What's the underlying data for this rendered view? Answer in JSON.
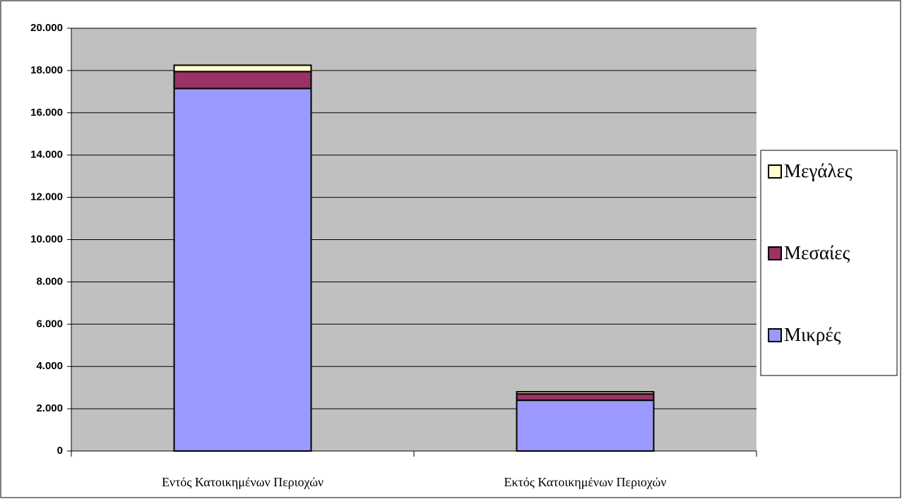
{
  "chart_data": {
    "type": "bar",
    "stacked": true,
    "categories": [
      "Εντός Κατοικημένων Περιοχών",
      "Εκτός Κατοικημένων Περιοχών"
    ],
    "series": [
      {
        "name": "Μικρές",
        "color": "#9999ff",
        "values": [
          17150,
          2400
        ]
      },
      {
        "name": "Μεσαίες",
        "color": "#993366",
        "values": [
          800,
          300
        ]
      },
      {
        "name": "Μεγάλες",
        "color": "#ffffcc",
        "values": [
          300,
          100
        ]
      }
    ],
    "ylim": [
      0,
      20000
    ],
    "yticks": [
      0,
      {
        "value": 2000,
        "label": "2.000"
      },
      {
        "value": 4000,
        "label": "4.000"
      },
      {
        "value": 6000,
        "label": "6.000"
      },
      {
        "value": 8000,
        "label": "8.000"
      },
      {
        "value": 10000,
        "label": "10.000"
      },
      {
        "value": 12000,
        "label": "12.000"
      },
      {
        "value": 14000,
        "label": "14.000"
      },
      {
        "value": 16000,
        "label": "16.000"
      },
      {
        "value": 18000,
        "label": "18.000"
      },
      {
        "value": 20000,
        "label": "20.000"
      }
    ],
    "grid": true,
    "legend": "right"
  }
}
